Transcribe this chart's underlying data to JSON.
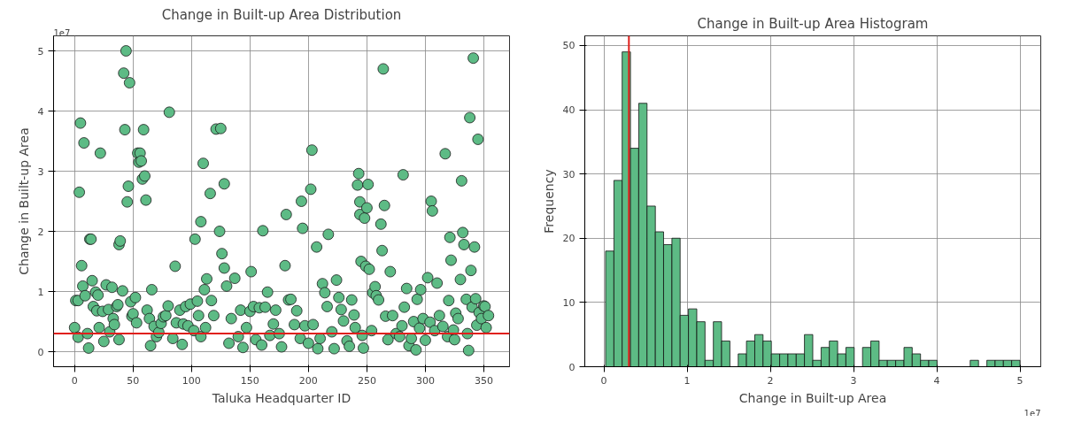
{
  "chart_data": [
    {
      "type": "scatter",
      "title": "Change in Built-up Area Distribution",
      "xlabel": "Taluka Headquarter ID",
      "ylabel": "Change in Built-up Area",
      "color": "#5dbb85",
      "marker": "circle",
      "grid": true,
      "annotations": [
        "1e7"
      ],
      "xlim": [
        -18,
        372
      ],
      "ylim": [
        -0.25,
        5.25
      ],
      "xticks": [
        0,
        50,
        100,
        150,
        200,
        250,
        300,
        350
      ],
      "yticks": [
        0,
        1,
        2,
        3,
        4,
        5
      ],
      "ref_lines": [
        {
          "axis": "y",
          "value": 0.3,
          "color": "#e0201c"
        }
      ],
      "x": [
        0,
        1,
        3,
        3,
        4,
        5,
        6,
        7,
        8,
        9,
        11,
        12,
        13,
        14,
        15,
        16,
        18,
        19,
        20,
        21,
        22,
        24,
        25,
        27,
        29,
        30,
        32,
        33,
        34,
        36,
        37,
        38,
        38,
        39,
        41,
        42,
        43,
        44,
        45,
        46,
        47,
        48,
        49,
        50,
        52,
        53,
        54,
        55,
        56,
        57,
        58,
        59,
        60,
        61,
        62,
        64,
        65,
        66,
        68,
        70,
        72,
        74,
        76,
        78,
        80,
        81,
        84,
        86,
        87,
        90,
        92,
        93,
        95,
        97,
        99,
        102,
        103,
        105,
        106,
        108,
        108,
        110,
        111,
        112,
        113,
        116,
        117,
        119,
        121,
        124,
        125,
        126,
        128,
        128,
        130,
        132,
        134,
        137,
        140,
        142,
        144,
        147,
        150,
        151,
        153,
        155,
        158,
        160,
        161,
        163,
        165,
        167,
        170,
        172,
        175,
        177,
        180,
        181,
        183,
        185,
        188,
        190,
        193,
        194,
        195,
        197,
        200,
        202,
        203,
        204,
        207,
        208,
        210,
        212,
        214,
        216,
        217,
        220,
        222,
        224,
        226,
        228,
        230,
        233,
        235,
        237,
        239,
        240,
        242,
        243,
        244,
        244,
        245,
        246,
        247,
        248,
        249,
        250,
        251,
        252,
        254,
        255,
        257,
        258,
        260,
        262,
        263,
        264,
        265,
        266,
        268,
        270,
        272,
        275,
        278,
        280,
        281,
        282,
        284,
        286,
        288,
        290,
        292,
        293,
        295,
        296,
        298,
        300,
        302,
        304,
        305,
        306,
        308,
        310,
        312,
        315,
        317,
        319,
        320,
        321,
        322,
        324,
        325,
        326,
        328,
        330,
        331,
        332,
        333,
        335,
        336,
        337,
        338,
        339,
        340,
        341,
        342,
        343,
        344,
        345,
        346,
        348,
        350,
        351,
        352,
        354
      ],
      "values": [
        0.4,
        0.85,
        0.85,
        0.24,
        2.65,
        3.8,
        1.43,
        1.09,
        3.47,
        0.93,
        0.3,
        0.06,
        1.87,
        1.87,
        1.18,
        0.75,
        0.99,
        0.68,
        0.94,
        0.4,
        3.3,
        0.67,
        0.17,
        1.11,
        0.7,
        0.33,
        1.07,
        0.55,
        0.45,
        0.75,
        0.78,
        0.2,
        1.78,
        1.84,
        1.01,
        4.63,
        3.69,
        5.0,
        2.49,
        2.75,
        4.47,
        0.83,
        0.59,
        0.63,
        0.9,
        0.48,
        3.3,
        3.15,
        3.3,
        3.17,
        2.87,
        3.69,
        2.92,
        2.52,
        0.69,
        0.55,
        0.1,
        1.03,
        0.42,
        0.25,
        0.32,
        0.47,
        0.58,
        0.6,
        0.76,
        3.98,
        0.22,
        1.42,
        0.48,
        0.69,
        0.12,
        0.46,
        0.75,
        0.43,
        0.79,
        0.35,
        1.87,
        0.84,
        0.6,
        0.25,
        2.16,
        3.13,
        1.03,
        0.4,
        1.21,
        2.63,
        0.85,
        0.6,
        3.7,
        2.0,
        3.71,
        1.63,
        2.79,
        1.39,
        1.09,
        0.14,
        0.55,
        1.22,
        0.25,
        0.69,
        0.07,
        0.4,
        0.67,
        1.33,
        0.75,
        0.2,
        0.73,
        0.11,
        2.01,
        0.74,
        0.99,
        0.27,
        0.46,
        0.69,
        0.3,
        0.08,
        1.43,
        2.28,
        0.86,
        0.87,
        0.45,
        0.68,
        0.22,
        2.5,
        2.05,
        0.43,
        0.14,
        2.7,
        3.35,
        0.45,
        1.74,
        0.05,
        0.22,
        1.13,
        0.98,
        0.75,
        1.95,
        0.33,
        0.05,
        1.19,
        0.9,
        0.7,
        0.51,
        0.18,
        0.09,
        0.86,
        0.61,
        0.4,
        2.77,
        2.96,
        2.49,
        2.28,
        1.5,
        0.27,
        0.06,
        2.22,
        1.42,
        2.39,
        2.78,
        1.37,
        0.35,
        0.98,
        1.08,
        0.93,
        0.86,
        2.12,
        1.68,
        4.7,
        2.43,
        0.59,
        0.2,
        1.33,
        0.6,
        0.3,
        0.25,
        0.43,
        2.94,
        0.74,
        1.05,
        0.1,
        0.22,
        0.5,
        0.03,
        0.87,
        0.39,
        1.03,
        0.55,
        0.19,
        1.23,
        0.49,
        2.5,
        2.34,
        0.35,
        1.14,
        0.6,
        0.42,
        3.29,
        0.25,
        0.85,
        1.9,
        1.52,
        0.36,
        0.2,
        0.64,
        0.55,
        1.2,
        2.84,
        1.98,
        1.78,
        0.87,
        0.3,
        0.02,
        3.89,
        1.35,
        0.74,
        4.88,
        1.74,
        0.88,
        0.44,
        3.53,
        0.65,
        0.55,
        0.76,
        0.75,
        0.4,
        0.6
      ]
    },
    {
      "type": "histogram",
      "title": "Change in Built-up Area Histogram",
      "xlabel": "Change in Built-up Area",
      "ylabel": "Frequency",
      "color": "#5dbb85",
      "grid": true,
      "annotations": [
        "1e7"
      ],
      "xlim": [
        -0.23,
        5.25
      ],
      "ylim": [
        0,
        51.5
      ],
      "yticks": [
        0,
        10,
        20,
        30,
        40,
        50
      ],
      "xticks": [
        0,
        1,
        2,
        3,
        4,
        5
      ],
      "ref_lines": [
        {
          "axis": "x",
          "value": 0.3,
          "color": "#e0201c"
        }
      ],
      "bins": [
        0.02,
        0.12,
        0.219,
        0.319,
        0.418,
        0.518,
        0.618,
        0.717,
        0.817,
        0.916,
        1.016,
        1.116,
        1.215,
        1.315,
        1.414,
        1.514,
        1.614,
        1.713,
        1.813,
        1.912,
        2.012,
        2.112,
        2.211,
        2.311,
        2.41,
        2.51,
        2.61,
        2.709,
        2.809,
        2.908,
        3.008,
        3.108,
        3.207,
        3.307,
        3.406,
        3.506,
        3.606,
        3.705,
        3.805,
        3.904,
        4.004,
        4.104,
        4.203,
        4.303,
        4.402,
        4.502,
        4.602,
        4.701,
        4.801,
        4.9,
        5.0
      ],
      "values": [
        18,
        29,
        49,
        34,
        41,
        25,
        21,
        19,
        20,
        8,
        9,
        7,
        1,
        7,
        4,
        0,
        2,
        4,
        5,
        4,
        2,
        2,
        2,
        2,
        5,
        1,
        3,
        4,
        2,
        3,
        0,
        3,
        4,
        1,
        1,
        1,
        3,
        2,
        1,
        1,
        0,
        0,
        0,
        0,
        1,
        0,
        1,
        1,
        1,
        1
      ]
    }
  ]
}
